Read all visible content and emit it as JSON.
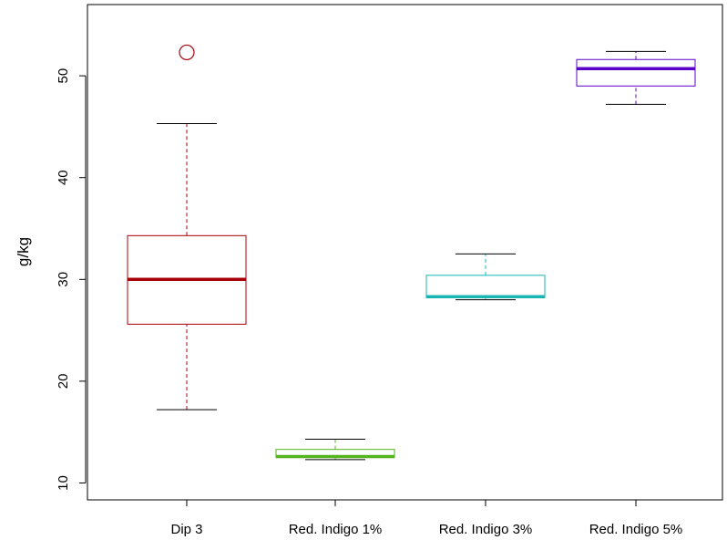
{
  "chart_data": {
    "type": "boxplot",
    "title": "",
    "xlabel": "",
    "ylabel": "g/kg",
    "ylim": [
      8.5,
      56.5
    ],
    "yticks": [
      10,
      20,
      30,
      40,
      50
    ],
    "grid": false,
    "legend": "none",
    "categories": [
      "Dip 3",
      "Red. Indigo 1%",
      "Red. Indigo 3%",
      "Red. Indigo 5%"
    ],
    "series": [
      {
        "category": "Dip 3",
        "color": "#a8000b",
        "whisker_low": 17.2,
        "q1": 25.6,
        "median": 30.0,
        "q3": 34.3,
        "whisker_high": 45.3,
        "outliers": [
          52.3
        ]
      },
      {
        "category": "Red. Indigo 1%",
        "color": "#55b41e",
        "whisker_low": 12.3,
        "q1": 12.5,
        "median": 12.6,
        "q3": 13.3,
        "whisker_high": 14.3,
        "outliers": []
      },
      {
        "category": "Red. Indigo 3%",
        "color": "#19b4b4",
        "whisker_low": 28.0,
        "q1": 28.2,
        "median": 28.3,
        "q3": 30.4,
        "whisker_high": 32.5,
        "outliers": []
      },
      {
        "category": "Red. Indigo 5%",
        "color": "#5a00c8",
        "whisker_low": 47.2,
        "q1": 49.0,
        "median": 50.7,
        "q3": 51.6,
        "whisker_high": 52.4,
        "outliers": []
      }
    ]
  }
}
